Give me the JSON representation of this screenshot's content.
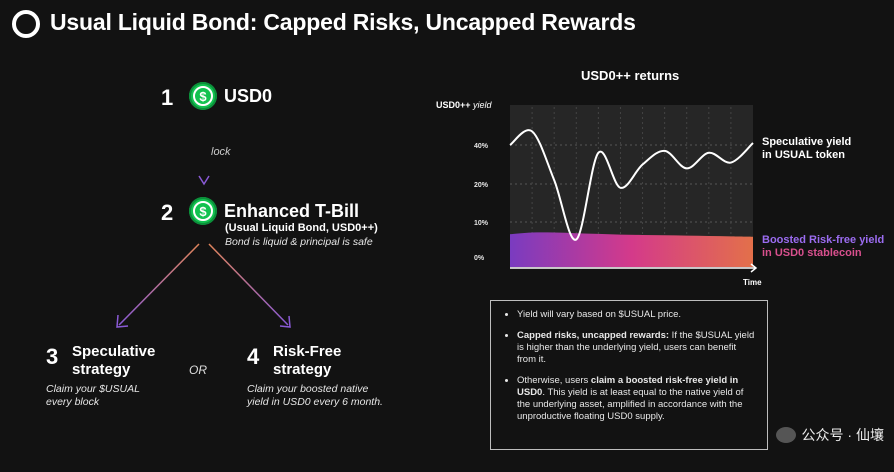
{
  "title": "Usual Liquid Bond: Capped Risks, Uncapped Rewards",
  "flow": {
    "step1": {
      "num": "1",
      "label": "USD0",
      "coin_icon": "dollar-coin-icon"
    },
    "lock_label": "lock",
    "step2": {
      "num": "2",
      "label": "Enhanced T-Bill",
      "sub": "(Usual Liquid Bond, USD0++)",
      "note": "Bond is liquid & principal is safe",
      "coin_icon": "dollar-coin-icon"
    },
    "or_label": "OR",
    "step3": {
      "num": "3",
      "title_line1": "Speculative",
      "title_line2": "strategy",
      "desc_line1": "Claim your $USUAL",
      "desc_line2": "every block"
    },
    "step4": {
      "num": "4",
      "title_line1": "Risk-Free",
      "title_line2": "strategy",
      "desc_line1": "Claim your boosted native",
      "desc_line2": "yield in USD0 every 6 month."
    }
  },
  "chart": {
    "title": "USD0++ returns",
    "ylabel_bold": "USD0++",
    "ylabel_ital": "yield",
    "xlabel": "Time",
    "ticks": [
      "40%",
      "20%",
      "10%",
      "0%"
    ],
    "annotation_top_line1": "Speculative yield",
    "annotation_top_line2": "in USUAL token",
    "annotation_bottom_line1": "Boosted Risk-free yield",
    "annotation_bottom_line2": "in USD0 stablecoin"
  },
  "chart_data": {
    "type": "area",
    "xlabel": "Time",
    "ylabel": "USD0++ yield",
    "y_ticks": [
      "0%",
      "10%",
      "20%",
      "40%"
    ],
    "grid": true,
    "series": [
      {
        "name": "Speculative yield in USUAL token",
        "values": [
          40,
          47,
          22,
          5,
          36,
          19,
          30,
          37,
          28,
          36,
          31,
          41
        ]
      },
      {
        "name": "Boosted Risk-free yield in USD0 stablecoin",
        "values": [
          6.5,
          7,
          7,
          6.8,
          6.6,
          6.4,
          6.3,
          6.2,
          6.1,
          6.0,
          5.9,
          5.8
        ]
      }
    ]
  },
  "info_box": {
    "bullet1": "Yield will vary based on $USUAL price.",
    "bullet2_bold": "Capped risks, uncapped rewards:",
    "bullet2_rest": " If the $USUAL yield is higher than the underlying yield, users can benefit from it.",
    "bullet3_pre": "Otherwise, users ",
    "bullet3_bold": "claim a boosted risk-free yield in USD0",
    "bullet3_rest": ". This yield is at least equal to the native yield of the underlying asset, amplified in accordance with the unproductive floating USD0 supply."
  },
  "watermark": "公众号 · 仙壤",
  "colors": {
    "coin": "#11c24f",
    "arrow_purple": "#8a5ad6",
    "arrow_orange": "#e0845a",
    "grad_start": "#7a3bc0",
    "grad_mid": "#d43a8a",
    "grad_end": "#e3704a",
    "label_purple": "#9b6cf0",
    "label_pink": "#d9508e"
  }
}
